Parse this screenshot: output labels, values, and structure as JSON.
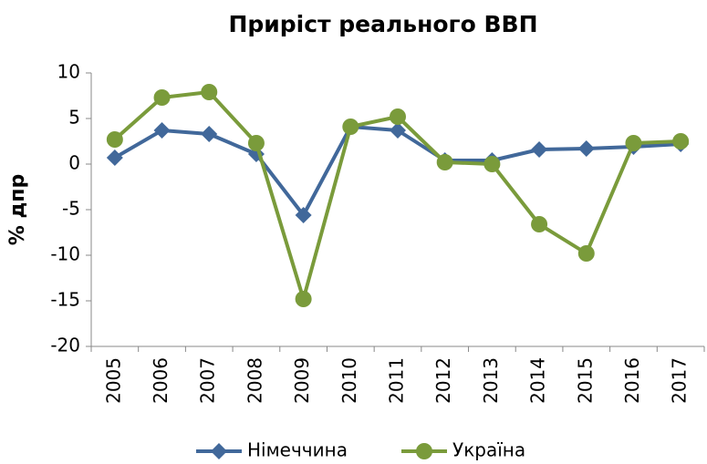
{
  "chart_data": {
    "type": "line",
    "title": "Приріст реального ВВП",
    "y_label": "% дпр",
    "categories": [
      "2005",
      "2006",
      "2007",
      "2008",
      "2009",
      "2010",
      "2011",
      "2012",
      "2013",
      "2014",
      "2015",
      "2016",
      "2017"
    ],
    "series": [
      {
        "name": "Німеччина",
        "color": "#41689a",
        "marker": "diamond",
        "values": [
          0.7,
          3.7,
          3.3,
          1.1,
          -5.6,
          4.1,
          3.7,
          0.4,
          0.4,
          1.6,
          1.7,
          1.9,
          2.2
        ]
      },
      {
        "name": "Україна",
        "color": "#7a9b3b",
        "marker": "circle",
        "values": [
          2.7,
          7.3,
          7.9,
          2.3,
          -14.8,
          4.1,
          5.2,
          0.2,
          0,
          -6.6,
          -9.8,
          2.3,
          2.5
        ]
      }
    ],
    "ylim": [
      -20,
      10
    ],
    "yticks": [
      10,
      5,
      0,
      -5,
      -10,
      -15,
      -20
    ],
    "grid": false,
    "legend": "bottom"
  }
}
